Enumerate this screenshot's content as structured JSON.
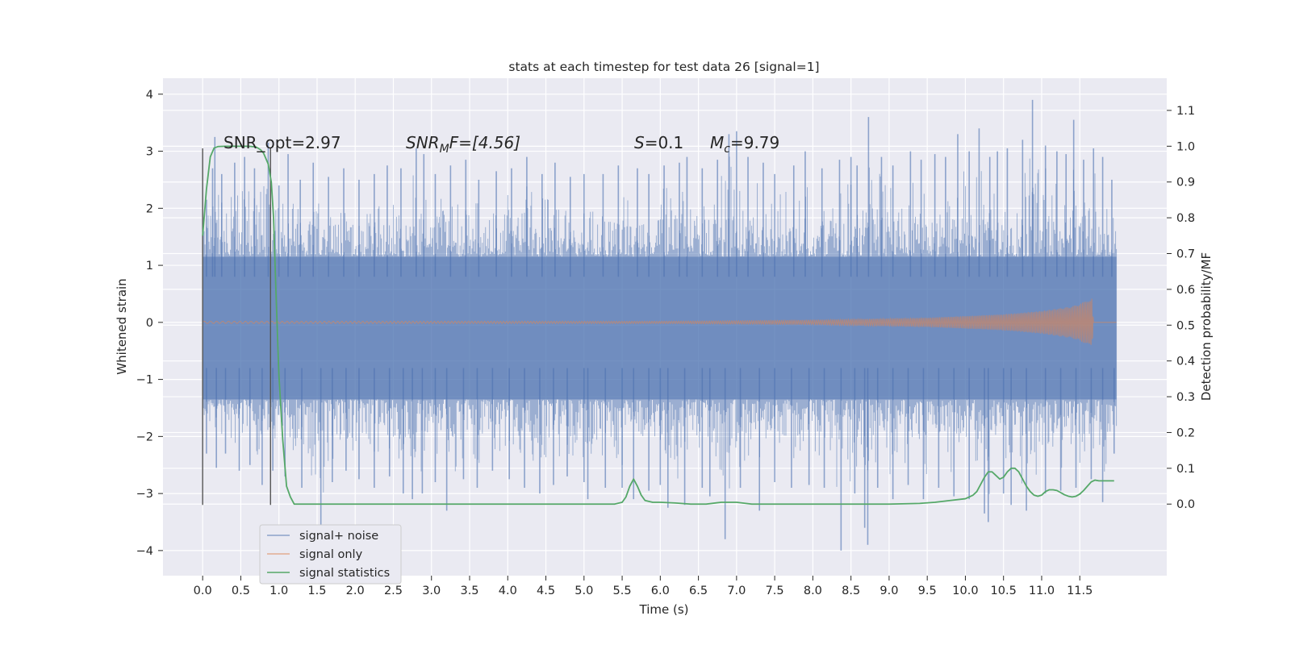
{
  "chart_data": {
    "type": "line",
    "title": "stats at each timestep for test data 26 [signal=1]",
    "xlabel": "Time (s)",
    "ylabel": "Whitened strain",
    "ylabel_right": "Detection probability/MF",
    "xlim": [
      -0.52,
      12.64
    ],
    "ylim": [
      -4.44,
      4.28
    ],
    "ylim_right": [
      -0.2,
      1.19
    ],
    "grid": true,
    "legend_position": "lower-left",
    "x_ticks": [
      "0.0",
      "0.5",
      "1.0",
      "1.5",
      "2.0",
      "2.5",
      "3.0",
      "3.5",
      "4.0",
      "4.5",
      "5.0",
      "5.5",
      "6.0",
      "6.5",
      "7.0",
      "7.5",
      "8.0",
      "8.5",
      "9.0",
      "9.5",
      "10.0",
      "10.5",
      "11.0",
      "11.5"
    ],
    "y_ticks": [
      "4",
      "3",
      "2",
      "1",
      "0",
      "−1",
      "−2",
      "−3",
      "−4"
    ],
    "y_ticks_right": [
      "1.1",
      "1.0",
      "0.9",
      "0.8",
      "0.7",
      "0.6",
      "0.5",
      "0.4",
      "0.3",
      "0.2",
      "0.1",
      "0.0"
    ],
    "annotations": {
      "snr_opt": "SNR_opt=2.97",
      "snr_mf_prefix": "SNR",
      "snr_mf_sub": "M",
      "snr_mf_suffix": "F=[4.56]",
      "s_symbol": "S",
      "s_value": "=0.1",
      "mc_symbol": "M",
      "mc_sub": "c",
      "mc_value": "=9.79"
    },
    "vertical_lines": [
      {
        "x": 0.0,
        "y_range": [
          -3.2,
          3.05
        ]
      },
      {
        "x": 0.89,
        "y_range": [
          -3.2,
          3.05
        ]
      }
    ],
    "series": [
      {
        "name": "signal+ noise",
        "color": "#4c72b0",
        "kind": "noise-band",
        "x_range": [
          0.0,
          11.98
        ],
        "core_band": [
          -1.35,
          1.15
        ],
        "spikes_top": [
          [
            0.05,
            2.15
          ],
          [
            0.13,
            2.7
          ],
          [
            0.16,
            3.25
          ],
          [
            0.25,
            2.6
          ],
          [
            0.42,
            2.8
          ],
          [
            0.55,
            2.9
          ],
          [
            0.68,
            2.7
          ],
          [
            0.86,
            3.15
          ],
          [
            1.0,
            2.4
          ],
          [
            1.12,
            2.95
          ],
          [
            1.28,
            2.5
          ],
          [
            1.45,
            2.8
          ],
          [
            1.65,
            2.55
          ],
          [
            1.85,
            2.7
          ],
          [
            2.05,
            2.5
          ],
          [
            2.25,
            2.6
          ],
          [
            2.42,
            2.75
          ],
          [
            2.6,
            2.7
          ],
          [
            2.8,
            3.05
          ],
          [
            2.9,
            2.95
          ],
          [
            3.05,
            2.6
          ],
          [
            3.25,
            2.75
          ],
          [
            3.45,
            2.85
          ],
          [
            3.62,
            2.5
          ],
          [
            3.85,
            2.65
          ],
          [
            4.05,
            2.7
          ],
          [
            4.25,
            2.9
          ],
          [
            4.45,
            2.6
          ],
          [
            4.62,
            2.8
          ],
          [
            4.82,
            2.55
          ],
          [
            5.0,
            2.6
          ],
          [
            5.25,
            2.6
          ],
          [
            5.45,
            2.75
          ],
          [
            5.7,
            2.7
          ],
          [
            5.85,
            2.6
          ],
          [
            6.05,
            2.75
          ],
          [
            6.25,
            2.8
          ],
          [
            6.35,
            2.9
          ],
          [
            6.55,
            2.7
          ],
          [
            6.75,
            2.85
          ],
          [
            6.9,
            3.3
          ],
          [
            7.0,
            3.35
          ],
          [
            7.15,
            2.9
          ],
          [
            7.35,
            2.8
          ],
          [
            7.5,
            2.6
          ],
          [
            7.75,
            2.75
          ],
          [
            7.9,
            3.0
          ],
          [
            8.12,
            2.7
          ],
          [
            8.35,
            2.85
          ],
          [
            8.5,
            2.9
          ],
          [
            8.58,
            2.75
          ],
          [
            8.73,
            3.6
          ],
          [
            8.9,
            2.9
          ],
          [
            9.05,
            2.75
          ],
          [
            9.28,
            3.0
          ],
          [
            9.42,
            2.85
          ],
          [
            9.6,
            2.95
          ],
          [
            9.74,
            2.9
          ],
          [
            9.9,
            3.3
          ],
          [
            10.05,
            3.0
          ],
          [
            10.18,
            3.4
          ],
          [
            10.32,
            2.9
          ],
          [
            10.42,
            3.0
          ],
          [
            10.55,
            3.05
          ],
          [
            10.75,
            3.2
          ],
          [
            10.88,
            3.9
          ],
          [
            11.05,
            3.1
          ],
          [
            11.2,
            3.0
          ],
          [
            11.32,
            2.95
          ],
          [
            11.42,
            3.55
          ],
          [
            11.55,
            2.85
          ],
          [
            11.68,
            3.05
          ],
          [
            11.8,
            2.9
          ],
          [
            11.92,
            2.5
          ]
        ],
        "spikes_bottom": [
          [
            0.05,
            -2.3
          ],
          [
            0.18,
            -2.55
          ],
          [
            0.3,
            -2.3
          ],
          [
            0.48,
            -2.6
          ],
          [
            0.62,
            -2.5
          ],
          [
            0.78,
            -2.85
          ],
          [
            0.92,
            -2.6
          ],
          [
            1.08,
            -2.7
          ],
          [
            1.3,
            -2.9
          ],
          [
            1.55,
            -3.6
          ],
          [
            1.7,
            -2.8
          ],
          [
            1.88,
            -2.6
          ],
          [
            2.05,
            -2.75
          ],
          [
            2.25,
            -2.9
          ],
          [
            2.45,
            -2.7
          ],
          [
            2.63,
            -3.0
          ],
          [
            2.75,
            -3.1
          ],
          [
            2.88,
            -3.0
          ],
          [
            3.05,
            -2.8
          ],
          [
            3.2,
            -3.3
          ],
          [
            3.42,
            -2.75
          ],
          [
            3.6,
            -2.9
          ],
          [
            3.8,
            -2.6
          ],
          [
            4.02,
            -2.75
          ],
          [
            4.22,
            -2.9
          ],
          [
            4.42,
            -3.0
          ],
          [
            4.6,
            -2.85
          ],
          [
            4.78,
            -2.7
          ],
          [
            5.0,
            -2.8
          ],
          [
            5.05,
            -3.1
          ],
          [
            5.28,
            -2.9
          ],
          [
            5.5,
            -2.9
          ],
          [
            5.65,
            -3.1
          ],
          [
            5.85,
            -2.95
          ],
          [
            6.0,
            -2.85
          ],
          [
            6.1,
            -3.25
          ],
          [
            6.32,
            -3.2
          ],
          [
            6.55,
            -2.9
          ],
          [
            6.65,
            -3.05
          ],
          [
            6.85,
            -3.8
          ],
          [
            7.05,
            -2.9
          ],
          [
            7.3,
            -3.3
          ],
          [
            7.5,
            -2.8
          ],
          [
            7.72,
            -2.9
          ],
          [
            7.95,
            -2.85
          ],
          [
            8.15,
            -2.9
          ],
          [
            8.37,
            -4.0
          ],
          [
            8.55,
            -3.0
          ],
          [
            8.68,
            -3.6
          ],
          [
            8.72,
            -3.9
          ],
          [
            8.85,
            -2.9
          ],
          [
            9.05,
            -3.1
          ],
          [
            9.25,
            -2.85
          ],
          [
            9.45,
            -3.1
          ],
          [
            9.65,
            -2.9
          ],
          [
            9.85,
            -3.05
          ],
          [
            10.05,
            -3.1
          ],
          [
            10.25,
            -3.35
          ],
          [
            10.3,
            -3.5
          ],
          [
            10.5,
            -3.0
          ],
          [
            10.6,
            -3.2
          ],
          [
            10.8,
            -3.3
          ],
          [
            11.05,
            -3.0
          ],
          [
            11.25,
            -2.95
          ],
          [
            11.45,
            -2.9
          ],
          [
            11.65,
            -2.75
          ],
          [
            11.8,
            -3.15
          ],
          [
            11.95,
            -2.3
          ]
        ]
      },
      {
        "name": "signal only",
        "color": "#dd8452",
        "kind": "chirp",
        "x_range": [
          0.0,
          11.98
        ],
        "amplitude_envelope": [
          [
            0.0,
            0.02
          ],
          [
            6.0,
            0.02
          ],
          [
            8.0,
            0.04
          ],
          [
            9.5,
            0.08
          ],
          [
            10.5,
            0.14
          ],
          [
            11.0,
            0.2
          ],
          [
            11.4,
            0.28
          ],
          [
            11.6,
            0.38
          ],
          [
            11.66,
            0.45
          ],
          [
            11.68,
            0.0
          ]
        ]
      },
      {
        "name": "signal statistics",
        "color": "#55a868",
        "axis": "right",
        "x": [
          0.0,
          0.05,
          0.1,
          0.15,
          0.2,
          0.3,
          0.4,
          0.5,
          0.6,
          0.7,
          0.76,
          0.8,
          0.86,
          0.9,
          0.93,
          0.96,
          1.0,
          1.05,
          1.1,
          1.15,
          1.2,
          1.3,
          1.5,
          2.0,
          2.5,
          3.0,
          3.5,
          4.0,
          4.5,
          5.0,
          5.2,
          5.4,
          5.5,
          5.55,
          5.6,
          5.65,
          5.7,
          5.75,
          5.8,
          5.9,
          6.0,
          6.2,
          6.4,
          6.6,
          6.8,
          7.0,
          7.2,
          7.5,
          8.0,
          8.5,
          9.0,
          9.4,
          9.6,
          9.8,
          10.0,
          10.1,
          10.15,
          10.2,
          10.25,
          10.3,
          10.35,
          10.4,
          10.45,
          10.5,
          10.55,
          10.6,
          10.65,
          10.7,
          10.75,
          10.8,
          10.85,
          10.9,
          10.95,
          11.0,
          11.05,
          11.1,
          11.15,
          11.2,
          11.25,
          11.3,
          11.35,
          11.4,
          11.45,
          11.5,
          11.55,
          11.6,
          11.65,
          11.7,
          11.75,
          11.8,
          11.85,
          11.9,
          11.95
        ],
        "values": [
          0.75,
          0.88,
          0.97,
          0.995,
          0.999,
          1.0,
          1.0,
          1.0,
          1.0,
          0.998,
          0.99,
          0.98,
          0.95,
          0.9,
          0.8,
          0.6,
          0.36,
          0.18,
          0.05,
          0.02,
          0.0,
          0.0,
          0.0,
          0.0,
          0.0,
          0.0,
          0.0,
          0.0,
          0.0,
          0.0,
          0.0,
          0.0,
          0.005,
          0.02,
          0.05,
          0.07,
          0.05,
          0.025,
          0.01,
          0.005,
          0.005,
          0.003,
          0.0,
          0.0,
          0.005,
          0.005,
          0.0,
          0.0,
          0.0,
          0.0,
          0.0,
          0.002,
          0.005,
          0.01,
          0.015,
          0.025,
          0.035,
          0.055,
          0.075,
          0.09,
          0.09,
          0.08,
          0.07,
          0.075,
          0.09,
          0.1,
          0.1,
          0.09,
          0.07,
          0.05,
          0.035,
          0.025,
          0.022,
          0.025,
          0.035,
          0.04,
          0.04,
          0.038,
          0.032,
          0.026,
          0.022,
          0.02,
          0.022,
          0.028,
          0.038,
          0.05,
          0.062,
          0.067,
          0.065,
          0.065,
          0.065,
          0.065,
          0.065
        ]
      }
    ]
  }
}
